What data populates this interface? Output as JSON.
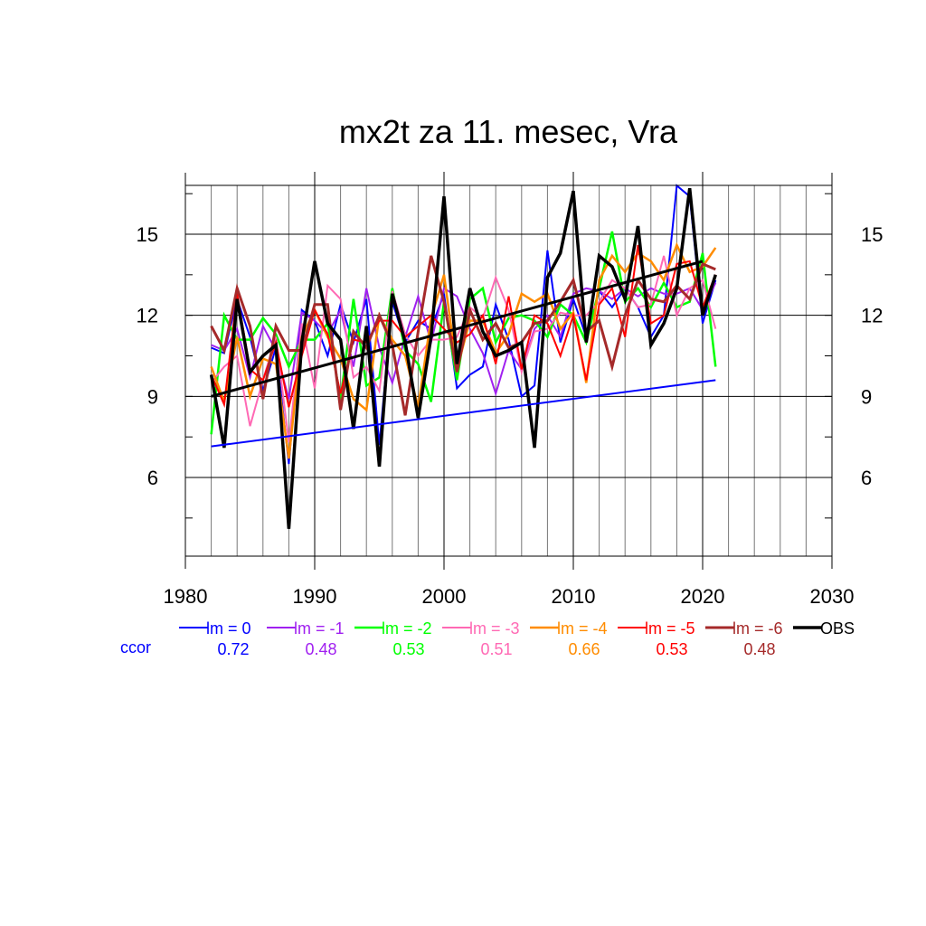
{
  "chart_data": {
    "type": "line",
    "title": "mx2t za 11. mesec, Vra",
    "xlabel": "",
    "ylabel": "",
    "xlim": [
      1980,
      2030
    ],
    "ylim": [
      4,
      17
    ],
    "x_ticks": [
      "1980",
      "1990",
      "2000",
      "2010",
      "2020",
      "2030"
    ],
    "y_ticks": [
      "6",
      "9",
      "12",
      "15"
    ],
    "grid": true,
    "legend_position": "bottom",
    "ccor_label": "ccor",
    "x": [
      1982,
      1983,
      1984,
      1985,
      1986,
      1987,
      1988,
      1989,
      1990,
      1991,
      1992,
      1993,
      1994,
      1995,
      1996,
      1997,
      1998,
      1999,
      2000,
      2001,
      2002,
      2003,
      2004,
      2005,
      2006,
      2007,
      2008,
      2009,
      2010,
      2011,
      2012,
      2013,
      2014,
      2015,
      2016,
      2017,
      2018,
      2019,
      2020,
      2021
    ],
    "series": [
      {
        "name": "lm = 0",
        "ccor": "0.72",
        "color": "#0000ff",
        "width": 2,
        "values": [
          10.8,
          10.6,
          12.6,
          11.2,
          9.2,
          10.8,
          6.5,
          12.2,
          11.8,
          10.5,
          12.4,
          11.0,
          12.6,
          7.2,
          12.5,
          11.0,
          11.8,
          11.5,
          12.8,
          9.3,
          9.8,
          10.1,
          12.4,
          11.1,
          9.0,
          9.4,
          14.4,
          11.0,
          12.6,
          11.2,
          12.9,
          12.3,
          13.0,
          12.3,
          11.2,
          12.0,
          16.8,
          16.4,
          11.7,
          13.3
        ]
      },
      {
        "name": "lm = -1",
        "ccor": "0.48",
        "color": "#a020f0",
        "width": 2,
        "values": [
          10.9,
          10.7,
          11.5,
          9.7,
          11.6,
          10.7,
          8.9,
          12.1,
          11.8,
          11.3,
          12.2,
          10.1,
          13.0,
          10.8,
          9.5,
          11.2,
          12.7,
          11.0,
          13.0,
          12.7,
          11.5,
          10.6,
          9.1,
          10.7,
          10.0,
          11.5,
          12.0,
          11.2,
          12.8,
          13.0,
          12.9,
          12.6,
          13.0,
          12.7,
          13.0,
          12.8,
          12.8,
          13.0,
          12.2,
          13.2
        ]
      },
      {
        "name": "lm = -2",
        "ccor": "0.53",
        "color": "#00ff00",
        "width": 2.5,
        "values": [
          7.6,
          12.0,
          11.1,
          11.1,
          11.9,
          11.3,
          10.1,
          11.1,
          11.1,
          11.7,
          8.9,
          12.6,
          9.4,
          9.7,
          13.0,
          10.7,
          10.2,
          8.8,
          12.5,
          9.6,
          12.6,
          13.0,
          11.0,
          11.9,
          12.0,
          11.8,
          11.2,
          12.4,
          12.0,
          11.0,
          13.0,
          15.1,
          12.5,
          13.0,
          12.3,
          13.2,
          12.3,
          12.5,
          14.3,
          10.1
        ]
      },
      {
        "name": "lm = -3",
        "ccor": "0.51",
        "color": "#ff69b4",
        "width": 2,
        "values": [
          9.5,
          10.1,
          10.5,
          7.9,
          9.6,
          11.2,
          7.3,
          11.7,
          9.3,
          13.1,
          12.6,
          9.7,
          10.1,
          9.2,
          12.9,
          11.3,
          10.5,
          11.1,
          11.1,
          11.2,
          12.3,
          11.9,
          13.4,
          12.2,
          9.9,
          11.4,
          11.5,
          12.1,
          12.0,
          12.0,
          12.5,
          13.3,
          13.0,
          12.3,
          12.4,
          14.2,
          12.0,
          13.0,
          13.3,
          11.5
        ]
      },
      {
        "name": "lm = -4",
        "ccor": "0.66",
        "color": "#ff8c00",
        "width": 2.5,
        "values": [
          10.1,
          8.8,
          11.2,
          9.0,
          10.4,
          10.2,
          6.7,
          11.2,
          12.2,
          11.2,
          10.4,
          8.9,
          8.5,
          12.0,
          11.1,
          10.5,
          8.6,
          11.9,
          13.5,
          10.0,
          11.8,
          11.8,
          10.6,
          11.3,
          12.8,
          12.5,
          12.8,
          11.5,
          12.1,
          9.5,
          13.3,
          14.2,
          13.6,
          14.3,
          14.0,
          13.3,
          14.6,
          13.6,
          13.8,
          14.5
        ]
      },
      {
        "name": "lm = -5",
        "ccor": "0.53",
        "color": "#ff0000",
        "width": 2,
        "values": [
          9.8,
          8.7,
          12.8,
          10.0,
          9.6,
          11.0,
          8.6,
          10.5,
          12.2,
          11.3,
          9.1,
          11.1,
          11.0,
          11.8,
          11.8,
          11.2,
          11.6,
          12.0,
          11.5,
          11.0,
          11.3,
          12.0,
          10.2,
          12.7,
          10.0,
          12.0,
          11.7,
          10.5,
          12.0,
          9.6,
          12.4,
          13.0,
          11.2,
          14.6,
          11.7,
          12.0,
          13.9,
          14.0,
          12.3,
          13.5
        ]
      },
      {
        "name": "lm = -6",
        "ccor": "0.48",
        "color": "#a52a2a",
        "width": 3,
        "values": [
          11.6,
          10.7,
          13.0,
          11.6,
          8.9,
          11.6,
          10.7,
          10.7,
          12.4,
          12.4,
          8.5,
          11.4,
          10.8,
          12.0,
          10.9,
          8.3,
          11.4,
          14.2,
          12.5,
          9.9,
          12.2,
          11.1,
          11.7,
          10.8,
          11.0,
          11.7,
          11.8,
          12.5,
          13.3,
          11.4,
          11.8,
          10.1,
          12.0,
          13.3,
          12.6,
          12.5,
          13.1,
          12.6,
          13.9,
          13.7
        ]
      },
      {
        "name": "OBS",
        "ccor": "",
        "color": "#000000",
        "width": 3.5,
        "values": [
          9.8,
          7.1,
          12.6,
          9.9,
          10.5,
          10.9,
          4.1,
          11.0,
          14.0,
          11.7,
          11.1,
          7.8,
          11.6,
          6.4,
          12.8,
          11.0,
          8.2,
          11.2,
          16.4,
          10.2,
          13.0,
          11.4,
          10.5,
          10.7,
          11.0,
          7.1,
          13.4,
          14.3,
          16.6,
          11.0,
          14.2,
          13.8,
          12.6,
          15.3,
          10.9,
          11.7,
          13.0,
          16.7,
          12.0,
          13.5
        ]
      }
    ],
    "trend_lines": [
      {
        "color": "#000000",
        "width": 3,
        "x": [
          1982,
          2020
        ],
        "y": [
          9.0,
          14.0
        ]
      },
      {
        "color": "#0000ff",
        "width": 2,
        "x": [
          1982,
          2021
        ],
        "y": [
          7.15,
          9.6
        ]
      }
    ]
  }
}
